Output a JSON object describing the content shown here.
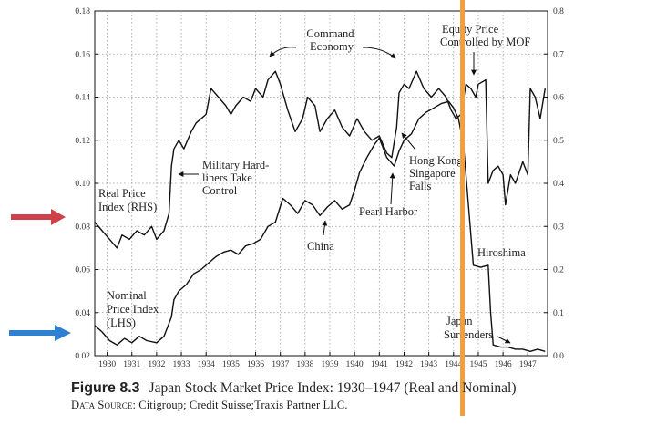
{
  "figure": {
    "label": "Figure 8.3",
    "title": "Japan Stock Market Price Index: 1930–1947 (Real and Nominal)",
    "source_label": "Data Source:",
    "source_text": "Citigroup; Credit Suisse;Traxis Partner LLC."
  },
  "chart_data": {
    "type": "line",
    "title": "",
    "xlabel": "",
    "ylabel": "",
    "x_categories": [
      "1930",
      "1931",
      "1932",
      "1933",
      "1934",
      "1935",
      "1936",
      "1937",
      "1938",
      "1939",
      "1940",
      "1941",
      "1942",
      "1943",
      "1944",
      "1945",
      "1946",
      "1947"
    ],
    "xlim": [
      1929.5,
      1947.8
    ],
    "y_left": {
      "ylim": [
        0.02,
        0.18
      ],
      "ticks": [
        "0.02",
        "0.04",
        "0.06",
        "0.08",
        "0.10",
        "0.12",
        "0.14",
        "0.16",
        "0.18"
      ]
    },
    "y_right": {
      "ylim": [
        0.0,
        0.8
      ],
      "ticks": [
        "0.0",
        "0.1",
        "0.2",
        "0.3",
        "0.4",
        "0.5",
        "0.6",
        "0.7",
        "0.8"
      ]
    },
    "grid": true,
    "series": [
      {
        "name": "Real Price Index (RHS)",
        "axis": "right",
        "color": "#111111",
        "points": [
          [
            1929.5,
            0.31
          ],
          [
            1929.8,
            0.29
          ],
          [
            1930.1,
            0.27
          ],
          [
            1930.4,
            0.25
          ],
          [
            1930.6,
            0.28
          ],
          [
            1930.9,
            0.27
          ],
          [
            1931.2,
            0.29
          ],
          [
            1931.5,
            0.28
          ],
          [
            1931.8,
            0.3
          ],
          [
            1932.0,
            0.27
          ],
          [
            1932.3,
            0.29
          ],
          [
            1932.5,
            0.33
          ],
          [
            1932.6,
            0.44
          ],
          [
            1932.7,
            0.48
          ],
          [
            1932.9,
            0.5
          ],
          [
            1933.1,
            0.48
          ],
          [
            1933.4,
            0.52
          ],
          [
            1933.6,
            0.54
          ],
          [
            1934.0,
            0.56
          ],
          [
            1934.2,
            0.62
          ],
          [
            1934.5,
            0.6
          ],
          [
            1934.8,
            0.58
          ],
          [
            1935.0,
            0.56
          ],
          [
            1935.2,
            0.58
          ],
          [
            1935.5,
            0.6
          ],
          [
            1935.8,
            0.59
          ],
          [
            1936.0,
            0.62
          ],
          [
            1936.3,
            0.6
          ],
          [
            1936.5,
            0.64
          ],
          [
            1936.8,
            0.66
          ],
          [
            1937.0,
            0.63
          ],
          [
            1937.3,
            0.57
          ],
          [
            1937.6,
            0.52
          ],
          [
            1937.9,
            0.55
          ],
          [
            1938.1,
            0.6
          ],
          [
            1938.4,
            0.58
          ],
          [
            1938.6,
            0.52
          ],
          [
            1938.9,
            0.55
          ],
          [
            1939.2,
            0.57
          ],
          [
            1939.5,
            0.53
          ],
          [
            1939.8,
            0.51
          ],
          [
            1940.1,
            0.55
          ],
          [
            1940.4,
            0.52
          ],
          [
            1940.7,
            0.5
          ],
          [
            1941.0,
            0.51
          ],
          [
            1941.3,
            0.47
          ],
          [
            1941.5,
            0.46
          ],
          [
            1941.7,
            0.53
          ],
          [
            1941.8,
            0.61
          ],
          [
            1942.0,
            0.63
          ],
          [
            1942.2,
            0.62
          ],
          [
            1942.5,
            0.66
          ],
          [
            1942.8,
            0.62
          ],
          [
            1943.1,
            0.6
          ],
          [
            1943.4,
            0.62
          ],
          [
            1943.7,
            0.6
          ],
          [
            1943.9,
            0.57
          ],
          [
            1944.1,
            0.55
          ],
          [
            1944.3,
            0.56
          ],
          [
            1944.5,
            0.63
          ],
          [
            1944.7,
            0.62
          ],
          [
            1944.9,
            0.6
          ],
          [
            1945.0,
            0.63
          ],
          [
            1945.3,
            0.64
          ],
          [
            1945.4,
            0.4
          ],
          [
            1945.6,
            0.43
          ],
          [
            1945.8,
            0.44
          ],
          [
            1946.0,
            0.42
          ],
          [
            1946.1,
            0.35
          ],
          [
            1946.3,
            0.42
          ],
          [
            1946.5,
            0.4
          ],
          [
            1946.8,
            0.45
          ],
          [
            1947.0,
            0.42
          ],
          [
            1947.1,
            0.62
          ],
          [
            1947.3,
            0.6
          ],
          [
            1947.5,
            0.55
          ],
          [
            1947.7,
            0.62
          ]
        ]
      },
      {
        "name": "Nominal Price Index (LHS)",
        "axis": "left",
        "color": "#111111",
        "points": [
          [
            1929.5,
            0.034
          ],
          [
            1929.8,
            0.031
          ],
          [
            1930.1,
            0.027
          ],
          [
            1930.4,
            0.025
          ],
          [
            1930.7,
            0.028
          ],
          [
            1931.0,
            0.026
          ],
          [
            1931.3,
            0.029
          ],
          [
            1931.6,
            0.027
          ],
          [
            1932.0,
            0.026
          ],
          [
            1932.3,
            0.029
          ],
          [
            1932.6,
            0.038
          ],
          [
            1932.7,
            0.046
          ],
          [
            1932.9,
            0.05
          ],
          [
            1933.2,
            0.053
          ],
          [
            1933.5,
            0.058
          ],
          [
            1933.8,
            0.06
          ],
          [
            1934.1,
            0.063
          ],
          [
            1934.4,
            0.066
          ],
          [
            1934.7,
            0.068
          ],
          [
            1935.0,
            0.069
          ],
          [
            1935.3,
            0.067
          ],
          [
            1935.6,
            0.071
          ],
          [
            1935.9,
            0.072
          ],
          [
            1936.2,
            0.074
          ],
          [
            1936.5,
            0.08
          ],
          [
            1936.8,
            0.082
          ],
          [
            1937.1,
            0.093
          ],
          [
            1937.4,
            0.09
          ],
          [
            1937.7,
            0.086
          ],
          [
            1938.0,
            0.092
          ],
          [
            1938.3,
            0.09
          ],
          [
            1938.6,
            0.085
          ],
          [
            1938.9,
            0.089
          ],
          [
            1939.2,
            0.092
          ],
          [
            1939.5,
            0.088
          ],
          [
            1939.8,
            0.09
          ],
          [
            1940.0,
            0.097
          ],
          [
            1940.2,
            0.105
          ],
          [
            1940.5,
            0.112
          ],
          [
            1940.8,
            0.118
          ],
          [
            1941.0,
            0.121
          ],
          [
            1941.3,
            0.112
          ],
          [
            1941.6,
            0.108
          ],
          [
            1941.8,
            0.115
          ],
          [
            1942.0,
            0.12
          ],
          [
            1942.3,
            0.123
          ],
          [
            1942.6,
            0.13
          ],
          [
            1942.9,
            0.133
          ],
          [
            1943.2,
            0.135
          ],
          [
            1943.5,
            0.137
          ],
          [
            1943.8,
            0.138
          ],
          [
            1944.0,
            0.135
          ],
          [
            1944.2,
            0.13
          ],
          [
            1944.4,
            0.118
          ],
          [
            1944.6,
            0.09
          ],
          [
            1944.8,
            0.062
          ],
          [
            1945.1,
            0.061
          ],
          [
            1945.4,
            0.062
          ],
          [
            1945.5,
            0.04
          ],
          [
            1945.6,
            0.025
          ],
          [
            1945.9,
            0.024
          ],
          [
            1946.2,
            0.024
          ],
          [
            1946.5,
            0.023
          ],
          [
            1946.8,
            0.023
          ],
          [
            1947.1,
            0.022
          ],
          [
            1947.4,
            0.023
          ],
          [
            1947.7,
            0.022
          ]
        ]
      }
    ],
    "annotations": [
      {
        "lines": [
          "Command",
          "Economy"
        ]
      },
      {
        "lines": [
          "Equity Price",
          "Controlled by MOF"
        ]
      },
      {
        "lines": [
          "Military Hard-",
          "liners Take",
          "Control"
        ]
      },
      {
        "lines": [
          "Real Price",
          "Index (RHS)"
        ]
      },
      {
        "lines": [
          "Hong Kong",
          "Singapore",
          "Falls"
        ]
      },
      {
        "lines": [
          "Pearl Harbor"
        ]
      },
      {
        "lines": [
          "China"
        ]
      },
      {
        "lines": [
          "Hiroshima"
        ]
      },
      {
        "lines": [
          "Nominal",
          "Price Index",
          "(LHS)"
        ]
      },
      {
        "lines": [
          "Japan",
          "Surrenders"
        ]
      }
    ],
    "overlays": {
      "red_arrow_color": "#d0404a",
      "blue_arrow_color": "#2f80d0",
      "orange_line_color": "#f0a040"
    }
  }
}
